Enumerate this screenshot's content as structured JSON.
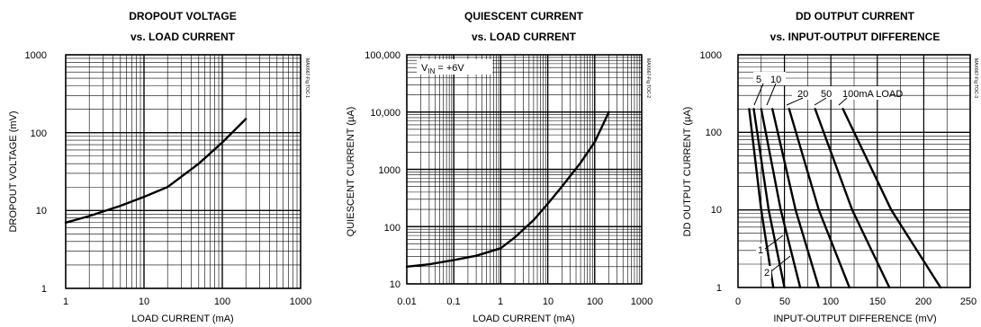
{
  "chart_data": [
    {
      "type": "line",
      "title": [
        "DROPOUT VOLTAGE",
        "vs. LOAD CURRENT"
      ],
      "xlabel": "LOAD CURRENT (mA)",
      "ylabel": "DROPOUT VOLTAGE (mV)",
      "xscale": "log",
      "yscale": "log",
      "xlim": [
        1,
        1000
      ],
      "ylim": [
        1,
        1000
      ],
      "xticks": [
        "1",
        "10",
        "100",
        "1000"
      ],
      "yticks": [
        "1",
        "10",
        "100",
        "1000"
      ],
      "grid": true,
      "side_label": "MAX667-Fig TOC-1",
      "series": [
        {
          "x": [
            1,
            2,
            5,
            10,
            20,
            50,
            100,
            200
          ],
          "y": [
            7,
            8.5,
            11.5,
            15,
            20,
            40,
            75,
            150
          ]
        }
      ]
    },
    {
      "type": "line",
      "title": [
        "QUIESCENT CURRENT",
        "vs. LOAD CURRENT"
      ],
      "xlabel": "LOAD CURRENT (mA)",
      "ylabel": "QUIESCENT CURRENT (µA)",
      "xscale": "log",
      "yscale": "log",
      "xlim": [
        0.01,
        1000
      ],
      "ylim": [
        10,
        100000
      ],
      "xticks": [
        "0.01",
        "0.1",
        "1",
        "10",
        "100",
        "1000"
      ],
      "yticks": [
        "10",
        "100",
        "1000",
        "10,000",
        "100,000"
      ],
      "grid": true,
      "side_label": "MAX667-Fig TOC-2",
      "annotation": {
        "base": "V",
        "sub": "IN",
        "rest": " = +6V"
      },
      "series": [
        {
          "x": [
            0.01,
            0.03,
            0.1,
            0.3,
            1,
            2,
            5,
            10,
            20,
            50,
            100,
            200
          ],
          "y": [
            20,
            22,
            26,
            31,
            42,
            65,
            130,
            250,
            500,
            1300,
            3000,
            10000
          ]
        }
      ]
    },
    {
      "type": "line",
      "title": [
        "DD OUTPUT CURRENT",
        "vs. INPUT-OUTPUT DIFFERENCE"
      ],
      "xlabel": "INPUT-OUTPUT DIFFERENCE (mV)",
      "ylabel": "DD OUTPUT CURRENT (µA)",
      "xscale": "linear",
      "yscale": "log",
      "xlim": [
        0,
        250
      ],
      "ylim": [
        1,
        1000
      ],
      "xticks": [
        "0",
        "50",
        "100",
        "150",
        "200",
        "250"
      ],
      "yticks": [
        "1",
        "10",
        "100",
        "1000"
      ],
      "grid": true,
      "side_label": "MAX667-Fig TOC-3",
      "load_labels": [
        "1",
        "2",
        "5",
        "10",
        "20",
        "50",
        "100mA LOAD"
      ],
      "series": [
        {
          "name": "1",
          "x": [
            12,
            25,
            38
          ],
          "y": [
            200,
            10,
            1
          ]
        },
        {
          "name": "2",
          "x": [
            17,
            33,
            50
          ],
          "y": [
            200,
            10,
            1
          ]
        },
        {
          "name": "5",
          "x": [
            25,
            46,
            67
          ],
          "y": [
            200,
            10,
            1
          ]
        },
        {
          "name": "10",
          "x": [
            37,
            62,
            87
          ],
          "y": [
            200,
            10,
            1
          ]
        },
        {
          "name": "20",
          "x": [
            55,
            87,
            120
          ],
          "y": [
            200,
            10,
            1
          ]
        },
        {
          "name": "50",
          "x": [
            83,
            123,
            163
          ],
          "y": [
            200,
            10,
            1
          ]
        },
        {
          "name": "100",
          "x": [
            113,
            165,
            218
          ],
          "y": [
            200,
            10,
            1
          ]
        }
      ]
    }
  ]
}
